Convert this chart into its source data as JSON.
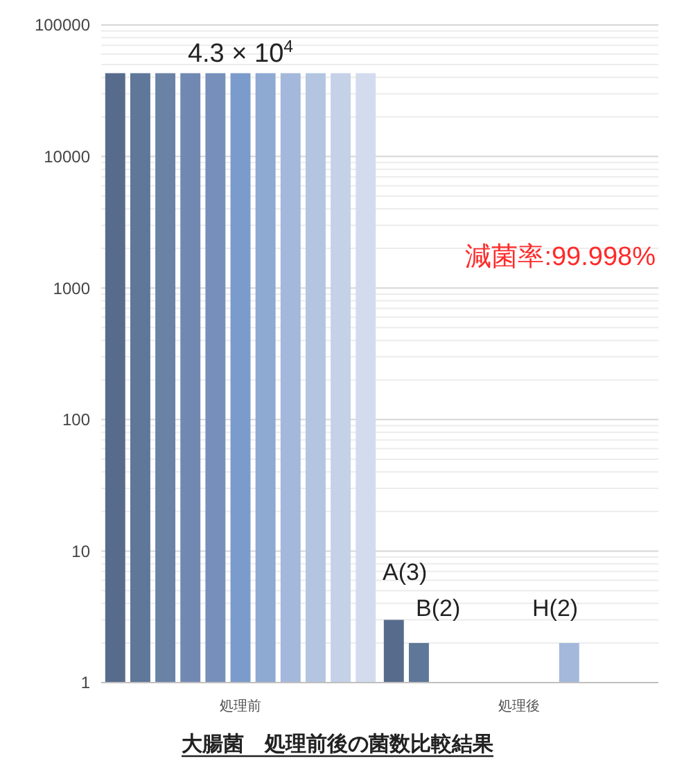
{
  "chart_data": {
    "type": "bar",
    "title": "大腸菌　処理前後の菌数比較結果",
    "categories": [
      "処理前",
      "処理後"
    ],
    "series": [
      {
        "color": "#576c8c",
        "values": [
          43000,
          3
        ]
      },
      {
        "color": "#5f7799",
        "values": [
          43000,
          2
        ]
      },
      {
        "color": "#6a82a6",
        "values": [
          43000,
          null
        ]
      },
      {
        "color": "#7189b2",
        "values": [
          43000,
          null
        ]
      },
      {
        "color": "#7690bb",
        "values": [
          43000,
          null
        ]
      },
      {
        "color": "#7b9bcc",
        "values": [
          43000,
          null
        ]
      },
      {
        "color": "#8ea9d2",
        "values": [
          43000,
          null
        ]
      },
      {
        "color": "#a3b8da",
        "values": [
          43000,
          2
        ]
      },
      {
        "color": "#b3c5e0",
        "values": [
          43000,
          null
        ]
      },
      {
        "color": "#c4d1e7",
        "values": [
          43000,
          null
        ]
      },
      {
        "color": "#d3dcee",
        "values": [
          43000,
          null
        ]
      }
    ],
    "log": "y",
    "ylim": [
      1,
      100000
    ],
    "yticks": [
      1,
      10,
      100,
      1000,
      10000,
      100000
    ],
    "grid": "y",
    "annotations": [
      {
        "text": "4.3 × 10$^{4}$",
        "x": "処理前",
        "y": 43000
      },
      "A(3)",
      "B(2)",
      "H(2)",
      "減菌率:99.998%"
    ]
  }
}
